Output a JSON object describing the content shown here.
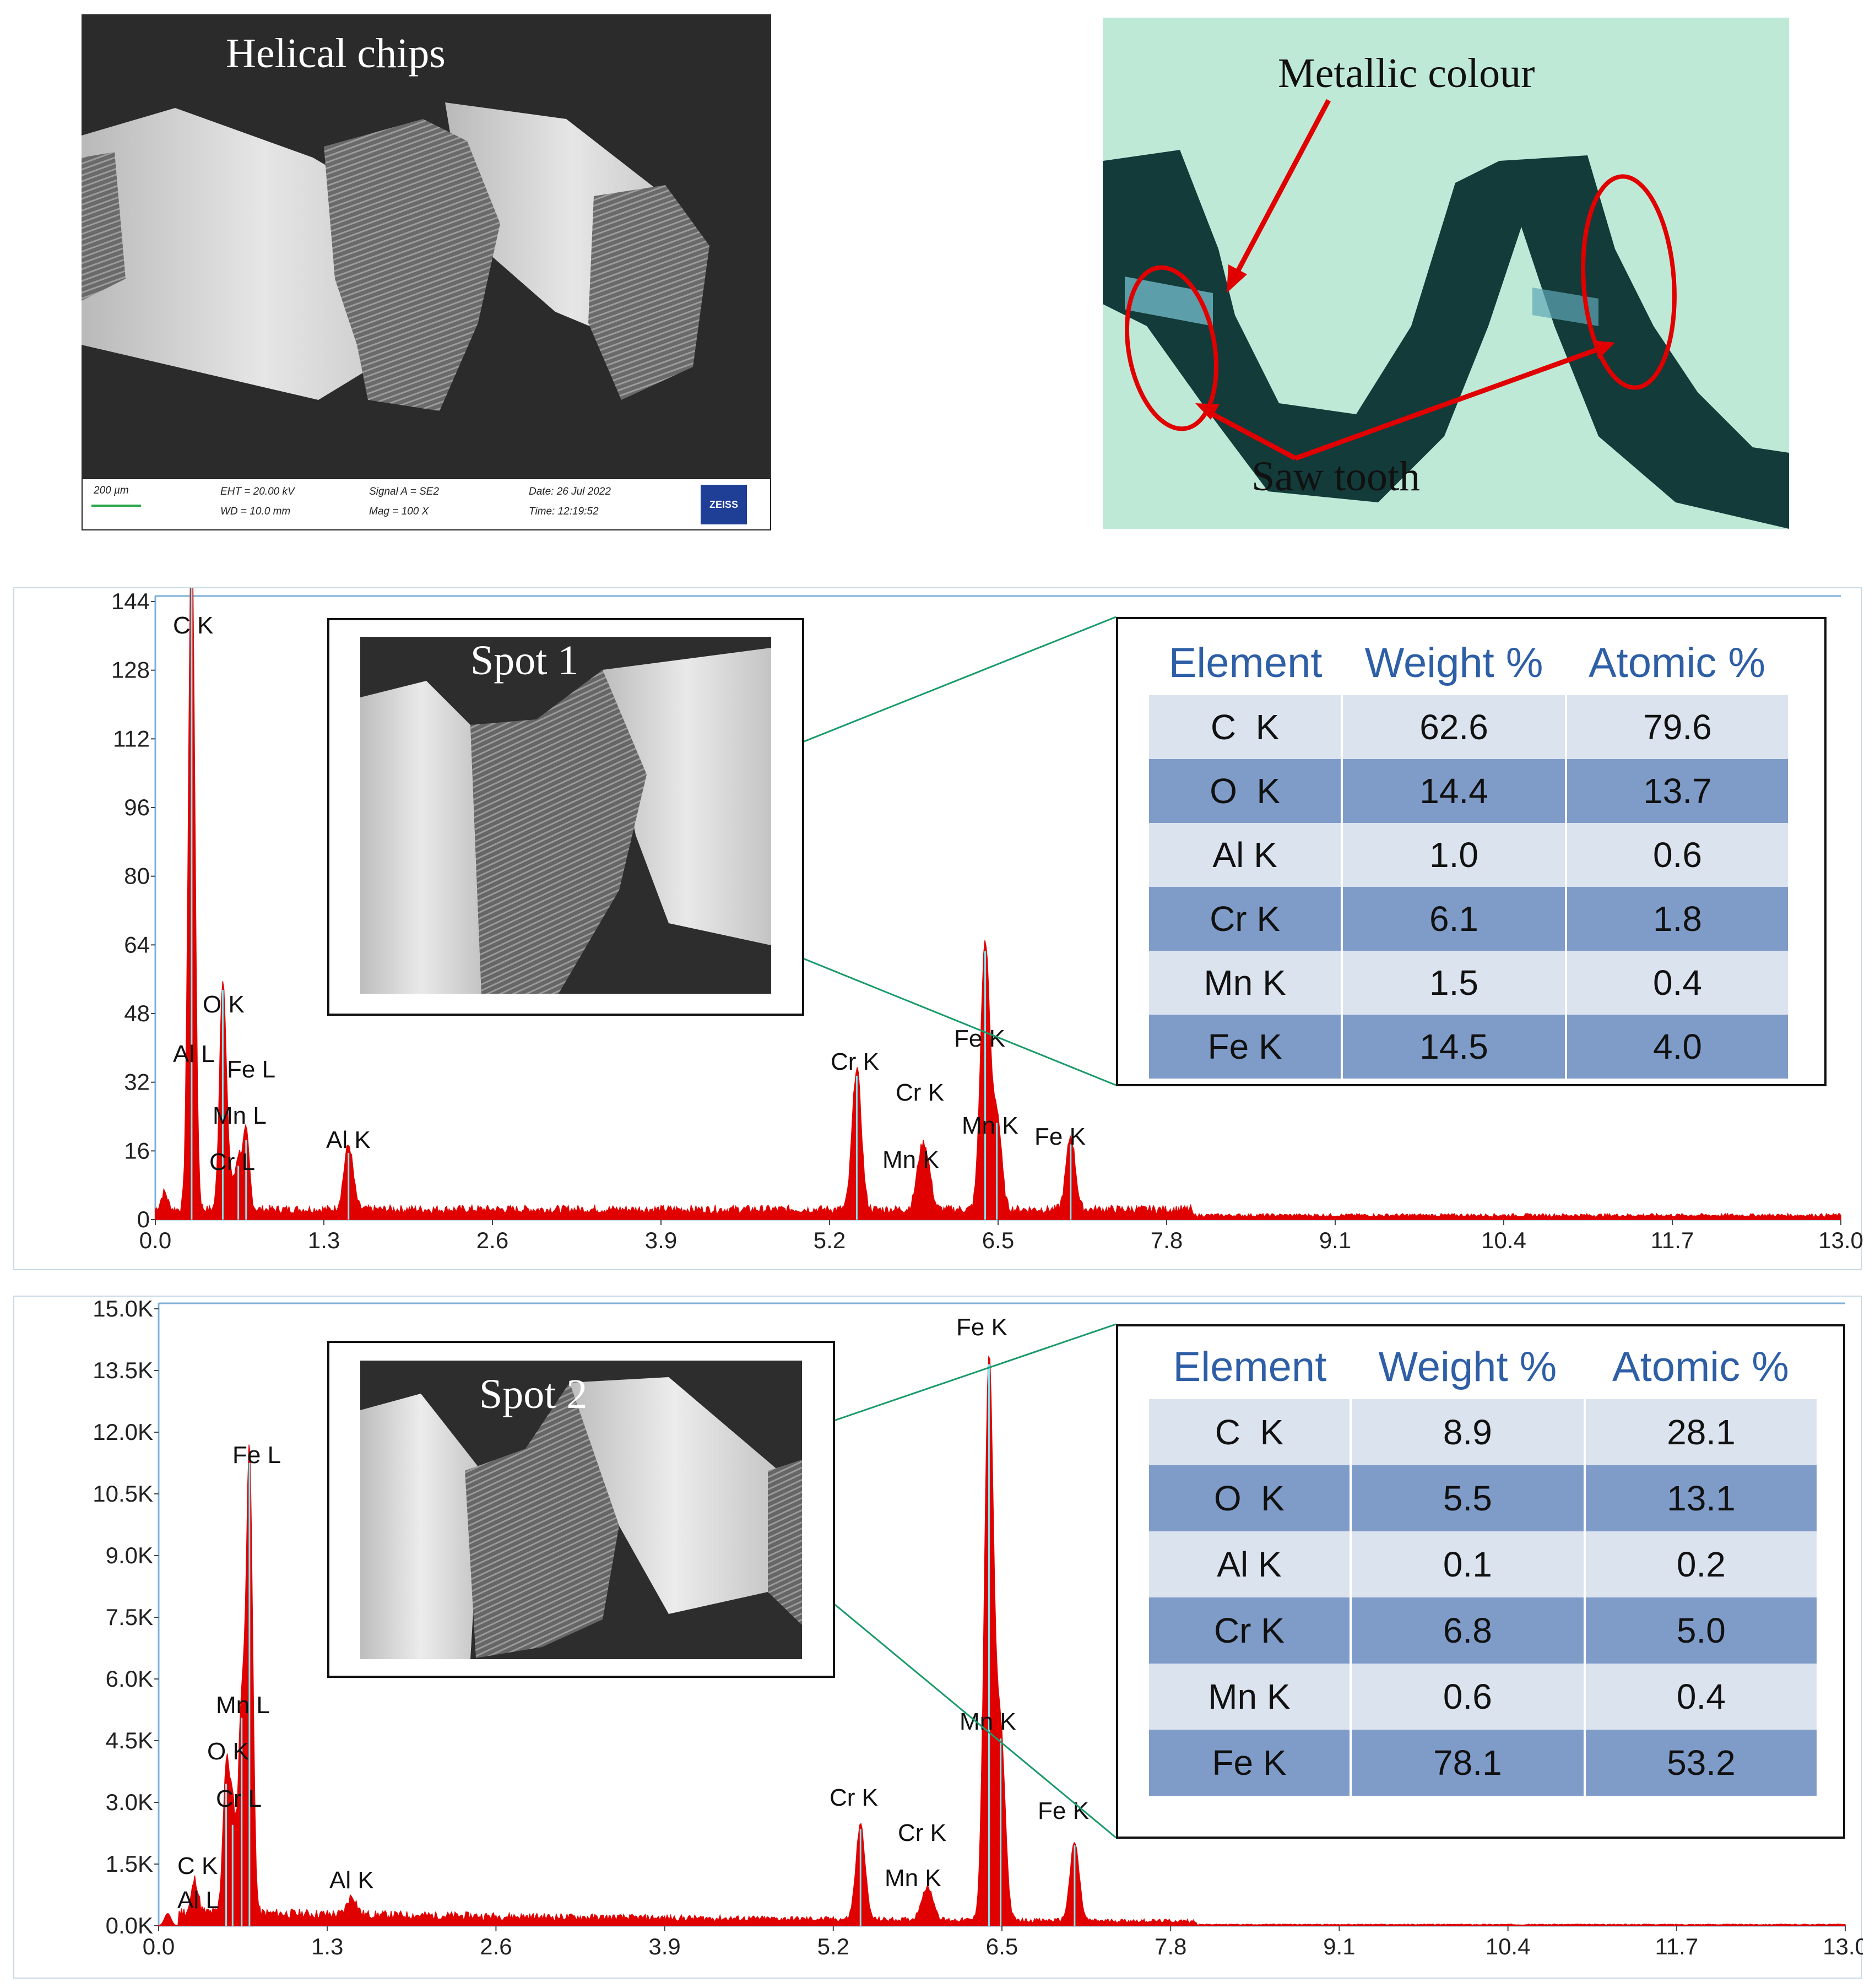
{
  "top_left_image": {
    "title": "Helical chips",
    "scale_bar": "200 µm",
    "eht": "EHT = 20.00 kV",
    "wd": "WD = 10.0 mm",
    "signal": "Signal A = SE2",
    "mag": "Mag =   100 X",
    "date": "Date: 26 Jul 2022",
    "time": "Time: 12:19:52",
    "logo": "ZEISS"
  },
  "top_right_image": {
    "label_metallic": "Metallic colour",
    "label_saw": "Saw tooth"
  },
  "spot1": {
    "inset_title": "Spot 1",
    "y_ticks": [
      "0",
      "16",
      "32",
      "48",
      "64",
      "80",
      "96",
      "112",
      "128",
      "144"
    ],
    "x_ticks": [
      "0.0",
      "1.3",
      "2.6",
      "3.9",
      "5.2",
      "6.5",
      "7.8",
      "9.1",
      "10.4",
      "11.7",
      "13.0"
    ],
    "peak_labels": [
      "C  K",
      "O  K",
      "Al L",
      "Fe L",
      "Mn L",
      "Cr L",
      "Al K",
      "Cr K",
      "Cr K",
      "Fe K",
      "Mn K",
      "Mn K",
      "Fe K"
    ],
    "table": {
      "headers": [
        "Element",
        "Weight %",
        "Atomic %"
      ],
      "rows": [
        [
          "C  K",
          "62.6",
          "79.6"
        ],
        [
          "O  K",
          "14.4",
          "13.7"
        ],
        [
          "Al K",
          "1.0",
          "0.6"
        ],
        [
          "Cr K",
          "6.1",
          "1.8"
        ],
        [
          "Mn K",
          "1.5",
          "0.4"
        ],
        [
          "Fe K",
          "14.5",
          "4.0"
        ]
      ]
    }
  },
  "spot2": {
    "inset_title": "Spot 2",
    "y_ticks": [
      "0.0K",
      "1.5K",
      "3.0K",
      "4.5K",
      "6.0K",
      "7.5K",
      "9.0K",
      "10.5K",
      "12.0K",
      "13.5K",
      "15.0K"
    ],
    "x_ticks": [
      "0.0",
      "1.3",
      "2.6",
      "3.9",
      "5.2",
      "6.5",
      "7.8",
      "9.1",
      "10.4",
      "11.7",
      "13.0"
    ],
    "peak_labels": [
      "Fe K",
      "Fe L",
      "Mn L",
      "O  K",
      "Cr L",
      "C  K",
      "Al L",
      "Al K",
      "Cr K",
      "Cr K",
      "Mn K",
      "Mn K",
      "Fe K"
    ],
    "table": {
      "headers": [
        "Element",
        "Weight %",
        "Atomic %"
      ],
      "rows": [
        [
          "C  K",
          "8.9",
          "28.1"
        ],
        [
          "O  K",
          "5.5",
          "13.1"
        ],
        [
          "Al K",
          "0.1",
          "0.2"
        ],
        [
          "Cr K",
          "6.8",
          "5.0"
        ],
        [
          "Mn K",
          "0.6",
          "0.4"
        ],
        [
          "Fe K",
          "78.1",
          "53.2"
        ]
      ]
    }
  },
  "chart_data": [
    {
      "type": "area",
      "xlim": [
        0.0,
        13.0
      ],
      "ylim": [
        0,
        144
      ],
      "x_ticks": [
        0.0,
        1.3,
        2.6,
        3.9,
        5.2,
        6.5,
        7.8,
        9.1,
        10.4,
        11.7,
        13.0
      ],
      "y_ticks": [
        0,
        16,
        32,
        48,
        64,
        80,
        96,
        112,
        128,
        144
      ],
      "peaks": [
        {
          "label": "C  K",
          "x": 0.28,
          "y": 160
        },
        {
          "label": "O  K",
          "x": 0.52,
          "y": 53
        },
        {
          "label": "Al L",
          "x": 0.07,
          "y": 4
        },
        {
          "label": "Fe L",
          "x": 0.7,
          "y": 18
        },
        {
          "label": "Mn L",
          "x": 0.64,
          "y": 12
        },
        {
          "label": "Cr L",
          "x": 0.57,
          "y": 8
        },
        {
          "label": "Al K",
          "x": 1.49,
          "y": 15
        },
        {
          "label": "Cr K",
          "x": 5.41,
          "y": 33
        },
        {
          "label": "Cr K",
          "x": 5.95,
          "y": 10
        },
        {
          "label": "Mn K",
          "x": 5.9,
          "y": 10
        },
        {
          "label": "Fe K",
          "x": 6.4,
          "y": 62
        },
        {
          "label": "Mn K",
          "x": 6.49,
          "y": 22
        },
        {
          "label": "Fe K",
          "x": 7.06,
          "y": 17
        }
      ]
    },
    {
      "type": "area",
      "xlim": [
        0.0,
        13.0
      ],
      "ylim": [
        0,
        15000
      ],
      "x_ticks": [
        0.0,
        1.3,
        2.6,
        3.9,
        5.2,
        6.5,
        7.8,
        9.1,
        10.4,
        11.7,
        13.0
      ],
      "y_ticks": [
        0,
        1500,
        3000,
        4500,
        6000,
        7500,
        9000,
        10500,
        12000,
        13500,
        15000
      ],
      "peaks": [
        {
          "label": "Fe K",
          "x": 6.4,
          "y": 13600
        },
        {
          "label": "Fe L",
          "x": 0.7,
          "y": 11200
        },
        {
          "label": "Mn L",
          "x": 0.64,
          "y": 5000
        },
        {
          "label": "O  K",
          "x": 0.52,
          "y": 3400
        },
        {
          "label": "Cr L",
          "x": 0.57,
          "y": 2400
        },
        {
          "label": "C  K",
          "x": 0.28,
          "y": 800
        },
        {
          "label": "Al L",
          "x": 0.07,
          "y": 300
        },
        {
          "label": "Al K",
          "x": 1.49,
          "y": 450
        },
        {
          "label": "Cr K",
          "x": 5.41,
          "y": 2300
        },
        {
          "label": "Cr K",
          "x": 5.95,
          "y": 500
        },
        {
          "label": "Mn K",
          "x": 5.9,
          "y": 500
        },
        {
          "label": "Mn K",
          "x": 6.49,
          "y": 4500
        },
        {
          "label": "Fe K",
          "x": 7.06,
          "y": 1900
        }
      ]
    }
  ]
}
